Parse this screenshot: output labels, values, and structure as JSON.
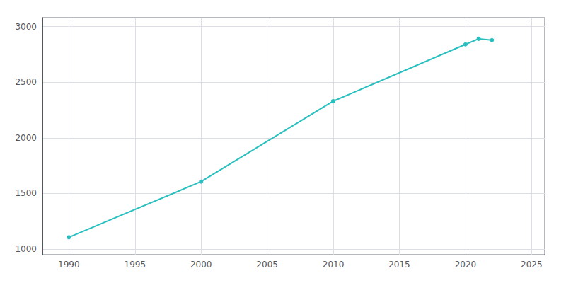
{
  "chart_data": {
    "type": "line",
    "x": [
      1990,
      2000,
      2010,
      2020,
      2021,
      2022
    ],
    "values": [
      1107,
      1607,
      2330,
      2840,
      2890,
      2878
    ],
    "color": "#2abfbf",
    "marker": "circle",
    "xlim": [
      1988,
      2026
    ],
    "ylim": [
      950,
      3080
    ],
    "xticks": [
      1990,
      1995,
      2000,
      2005,
      2010,
      2015,
      2020,
      2025
    ],
    "yticks": [
      1000,
      1500,
      2000,
      2500,
      3000
    ],
    "grid": true
  }
}
